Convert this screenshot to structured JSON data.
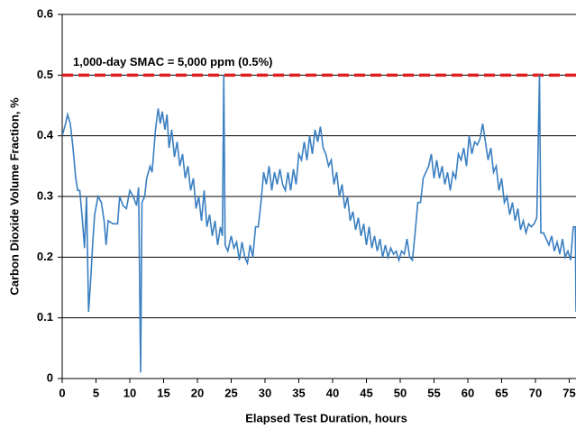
{
  "chart_data": {
    "type": "line",
    "x_label": "Elapsed Test Duration, hours",
    "y_label": "Carbon Dioxide Volume Fraction, %",
    "color": "#3a7fc1",
    "grid": true,
    "xlim": [
      0,
      76
    ],
    "ylim": [
      0,
      0.6
    ],
    "xticks": [
      0,
      5,
      10,
      15,
      20,
      25,
      30,
      35,
      40,
      45,
      50,
      55,
      60,
      65,
      70,
      75
    ],
    "yticks": [
      0,
      0.1,
      0.2,
      0.3,
      0.4,
      0.5,
      0.6
    ],
    "reference_line": {
      "value": 0.5,
      "label": "1,000-day SMAC = 5,000 ppm (0.5%)",
      "color": "#e02020"
    },
    "x": [
      0,
      0.5,
      0.8,
      1.2,
      1.6,
      2,
      2.3,
      2.6,
      3,
      3.3,
      3.6,
      3.9,
      4.2,
      4.5,
      4.8,
      5.3,
      5.8,
      6.2,
      6.5,
      6.8,
      7.5,
      8.2,
      8.5,
      9,
      9.5,
      10,
      10.5,
      11,
      11.3,
      11.6,
      11.8,
      12.2,
      12.5,
      13,
      13.3,
      13.8,
      14.2,
      14.5,
      14.8,
      15.2,
      15.5,
      15.8,
      16.2,
      16.6,
      17,
      17.4,
      17.8,
      18.2,
      18.6,
      19,
      19.4,
      19.8,
      20.2,
      20.6,
      21,
      21.4,
      21.8,
      22.2,
      22.6,
      23,
      23.4,
      23.7,
      23.9,
      24.1,
      24.5,
      25,
      25.4,
      25.8,
      26.2,
      26.6,
      27,
      27.4,
      27.8,
      28.2,
      28.6,
      29,
      29.4,
      29.8,
      30.2,
      30.6,
      31,
      31.4,
      31.8,
      32.2,
      32.6,
      33,
      33.4,
      33.8,
      34.2,
      34.6,
      35,
      35.4,
      35.8,
      36.2,
      36.6,
      37,
      37.4,
      37.8,
      38.2,
      38.6,
      39,
      39.4,
      39.8,
      40.2,
      40.6,
      41,
      41.4,
      41.8,
      42.2,
      42.6,
      43,
      43.4,
      43.8,
      44.2,
      44.6,
      45,
      45.4,
      45.8,
      46.2,
      46.6,
      47,
      47.4,
      47.8,
      48.2,
      48.6,
      49,
      49.4,
      49.8,
      50.2,
      50.6,
      51,
      51.4,
      51.8,
      52.2,
      52.6,
      53,
      53.4,
      53.8,
      54.2,
      54.6,
      55,
      55.4,
      55.8,
      56.2,
      56.6,
      57,
      57.4,
      57.8,
      58.2,
      58.6,
      59,
      59.4,
      59.8,
      60.2,
      60.6,
      61,
      61.4,
      61.8,
      62.2,
      62.6,
      63,
      63.4,
      63.8,
      64.2,
      64.6,
      65,
      65.4,
      65.8,
      66.2,
      66.6,
      67,
      67.4,
      67.8,
      68.2,
      68.6,
      69,
      69.4,
      69.8,
      70.2,
      70.6,
      70.8,
      71.2,
      71.6,
      72,
      72.4,
      72.8,
      73.2,
      73.6,
      74,
      74.4,
      74.8,
      75.2,
      75.6,
      75.9,
      76
    ],
    "values": [
      0.4,
      0.42,
      0.435,
      0.42,
      0.38,
      0.33,
      0.31,
      0.31,
      0.26,
      0.215,
      0.3,
      0.11,
      0.16,
      0.22,
      0.27,
      0.3,
      0.29,
      0.26,
      0.22,
      0.26,
      0.255,
      0.255,
      0.3,
      0.285,
      0.28,
      0.31,
      0.3,
      0.285,
      0.315,
      0.01,
      0.29,
      0.3,
      0.33,
      0.35,
      0.34,
      0.41,
      0.445,
      0.42,
      0.44,
      0.41,
      0.435,
      0.38,
      0.41,
      0.365,
      0.39,
      0.35,
      0.37,
      0.33,
      0.35,
      0.31,
      0.33,
      0.28,
      0.3,
      0.26,
      0.31,
      0.25,
      0.27,
      0.235,
      0.26,
      0.22,
      0.25,
      0.235,
      0.5,
      0.22,
      0.21,
      0.235,
      0.215,
      0.225,
      0.195,
      0.225,
      0.2,
      0.19,
      0.22,
      0.2,
      0.25,
      0.25,
      0.29,
      0.34,
      0.32,
      0.35,
      0.31,
      0.34,
      0.32,
      0.345,
      0.32,
      0.31,
      0.34,
      0.31,
      0.345,
      0.32,
      0.37,
      0.36,
      0.39,
      0.36,
      0.4,
      0.37,
      0.41,
      0.39,
      0.415,
      0.38,
      0.37,
      0.35,
      0.36,
      0.32,
      0.34,
      0.3,
      0.32,
      0.28,
      0.3,
      0.26,
      0.275,
      0.245,
      0.265,
      0.235,
      0.255,
      0.22,
      0.25,
      0.215,
      0.235,
      0.21,
      0.23,
      0.2,
      0.22,
      0.2,
      0.215,
      0.205,
      0.21,
      0.195,
      0.21,
      0.205,
      0.23,
      0.2,
      0.195,
      0.24,
      0.29,
      0.29,
      0.33,
      0.34,
      0.35,
      0.37,
      0.33,
      0.36,
      0.33,
      0.35,
      0.32,
      0.34,
      0.31,
      0.34,
      0.33,
      0.37,
      0.36,
      0.38,
      0.35,
      0.4,
      0.37,
      0.39,
      0.385,
      0.395,
      0.42,
      0.39,
      0.36,
      0.38,
      0.34,
      0.35,
      0.31,
      0.33,
      0.29,
      0.3,
      0.27,
      0.29,
      0.26,
      0.28,
      0.245,
      0.26,
      0.24,
      0.255,
      0.25,
      0.255,
      0.265,
      0.5,
      0.24,
      0.24,
      0.23,
      0.22,
      0.235,
      0.21,
      0.225,
      0.205,
      0.23,
      0.2,
      0.21,
      0.195,
      0.25,
      0.25,
      0.11
    ]
  }
}
